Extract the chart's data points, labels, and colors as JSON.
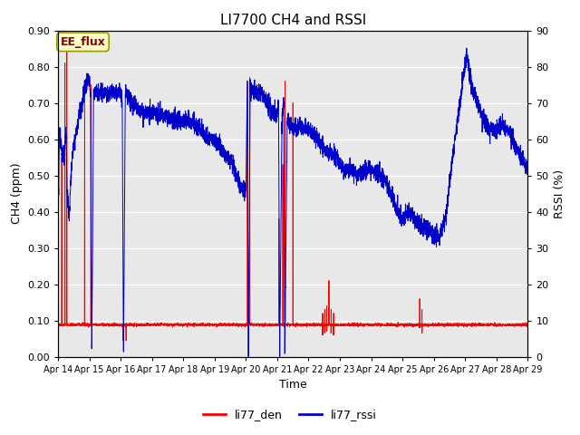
{
  "title": "LI7700 CH4 and RSSI",
  "xlabel": "Time",
  "ylabel_left": "CH4 (ppm)",
  "ylabel_right": "RSSI (%)",
  "ylim_left": [
    0.0,
    0.9
  ],
  "ylim_right": [
    0,
    90
  ],
  "yticks_left": [
    0.0,
    0.1,
    0.2,
    0.3,
    0.4,
    0.5,
    0.6,
    0.7,
    0.8,
    0.9
  ],
  "yticks_right": [
    0,
    10,
    20,
    30,
    40,
    50,
    60,
    70,
    80,
    90
  ],
  "fig_bg_color": "#ffffff",
  "plot_bg_color": "#e8e8e8",
  "grid_color": "#ffffff",
  "annotation_text": "EE_flux",
  "annotation_bg": "#ffffcc",
  "annotation_border": "#999900",
  "line_color_red": "#ff0000",
  "line_color_blue": "#0000cc",
  "legend_labels": [
    "li77_den",
    "li77_rssi"
  ],
  "x_tick_labels": [
    "Apr 14",
    "Apr 15",
    "Apr 16",
    "Apr 17",
    "Apr 18",
    "Apr 19",
    "Apr 20",
    "Apr 21",
    "Apr 22",
    "Apr 23",
    "Apr 24",
    "Apr 25",
    "Apr 26",
    "Apr 27",
    "Apr 28",
    "Apr 29"
  ]
}
